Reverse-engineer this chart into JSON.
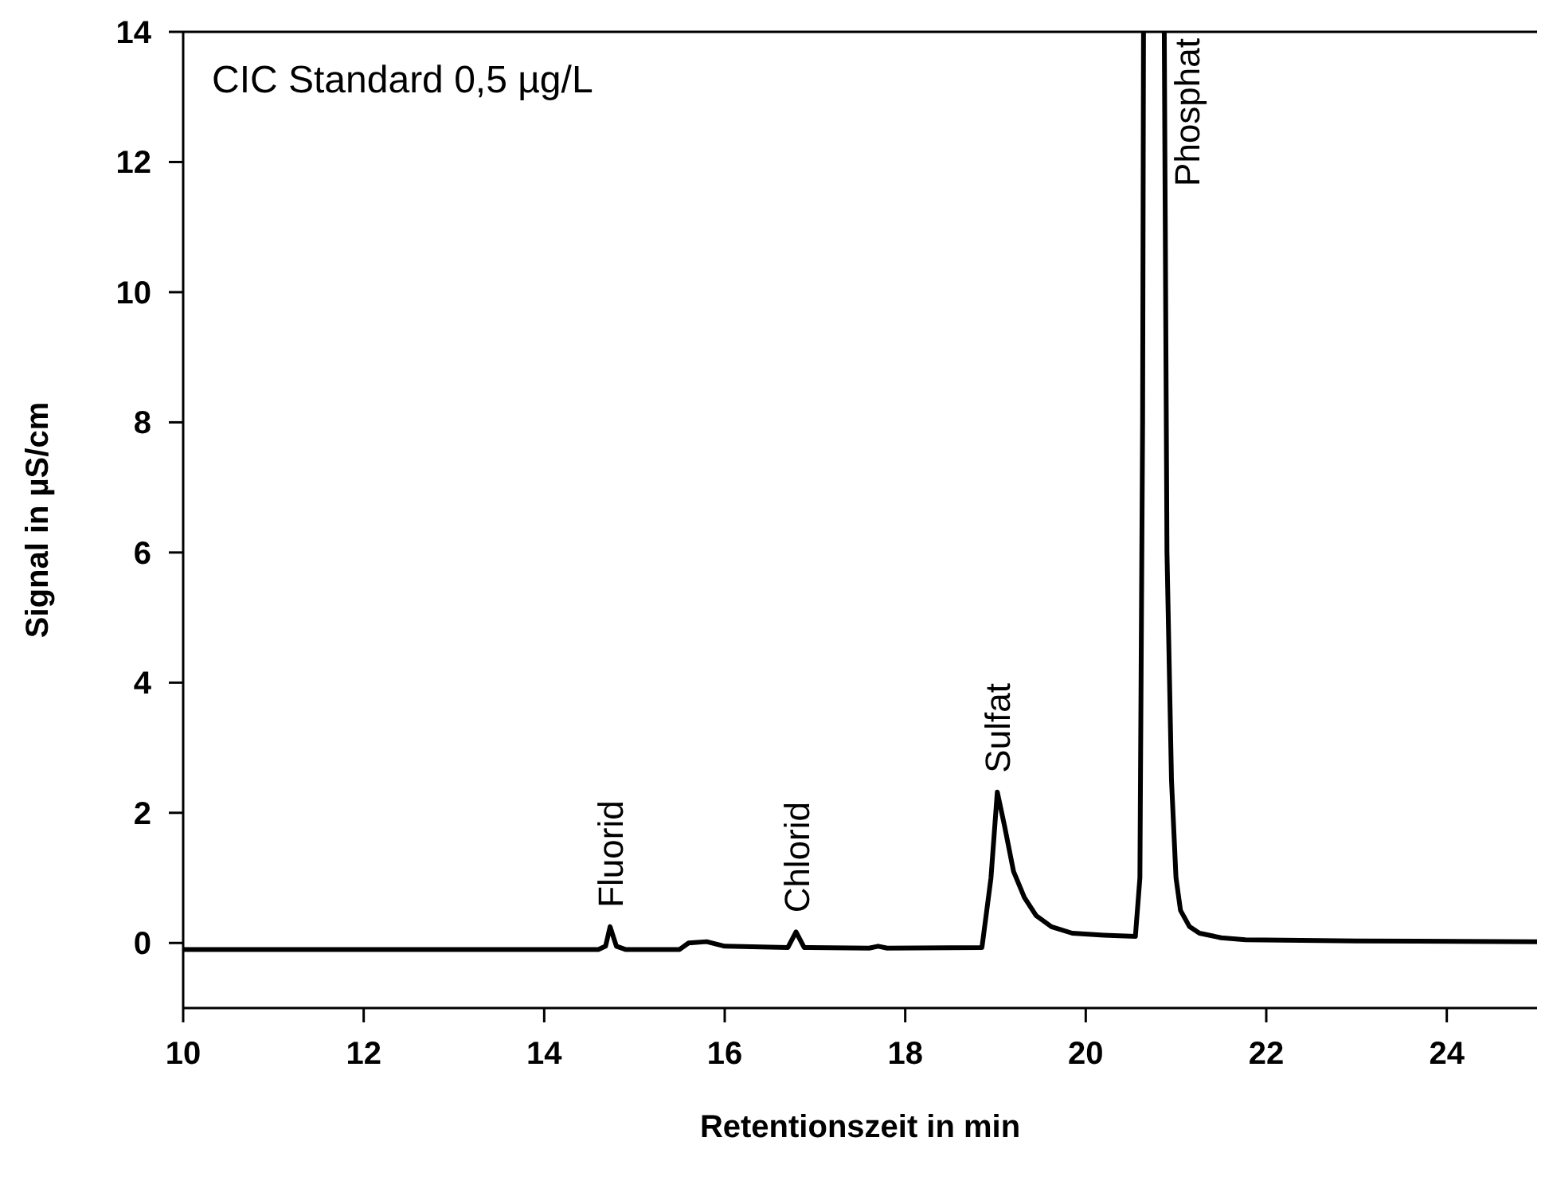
{
  "chart_data": {
    "type": "line",
    "title": "CIC Standard 0,5 µg/L",
    "xlabel": "Retentionszeit in min",
    "ylabel": "Signal in µS/cm",
    "xlim": [
      10,
      25
    ],
    "xticks": [
      10,
      12,
      14,
      16,
      18,
      20,
      22,
      24
    ],
    "ylim": [
      -1,
      14
    ],
    "yticks": [
      0,
      2,
      4,
      6,
      8,
      10,
      12,
      14
    ],
    "grid": false,
    "marker": "none",
    "line_style": "solid",
    "series": [
      {
        "color": "#000000",
        "x": [
          10,
          14.6,
          14.68,
          14.73,
          14.8,
          14.9,
          15.5,
          15.6,
          15.8,
          16.0,
          16.7,
          16.79,
          16.88,
          17.6,
          17.7,
          17.8,
          18.85,
          18.95,
          19.02,
          19.1,
          19.2,
          19.32,
          19.45,
          19.62,
          19.85,
          20.2,
          20.55,
          20.6,
          20.63,
          20.64,
          20.75,
          20.87,
          20.9,
          20.95,
          21.0,
          21.05,
          21.15,
          21.26,
          21.5,
          21.77,
          23,
          25
        ],
        "values": [
          -0.1,
          -0.1,
          -0.05,
          0.25,
          -0.05,
          -0.1,
          -0.1,
          0.0,
          0.02,
          -0.05,
          -0.07,
          0.17,
          -0.07,
          -0.08,
          -0.05,
          -0.08,
          -0.07,
          1.0,
          2.32,
          1.8,
          1.1,
          0.7,
          0.42,
          0.25,
          0.15,
          0.12,
          0.1,
          1,
          8,
          14,
          null,
          14,
          6,
          2.5,
          1.0,
          0.5,
          0.25,
          0.15,
          0.08,
          0.05,
          0.03,
          0.02
        ]
      }
    ],
    "annotations": [
      {
        "text": "Fluorid",
        "x": 14.73,
        "y": 0.25
      },
      {
        "text": "Chlorid",
        "x": 16.79,
        "y": 0.17
      },
      {
        "text": "Sulfat",
        "x": 19.02,
        "y": 2.32
      },
      {
        "text": "Phosphat",
        "x": 20.87,
        "y": 14
      }
    ]
  }
}
